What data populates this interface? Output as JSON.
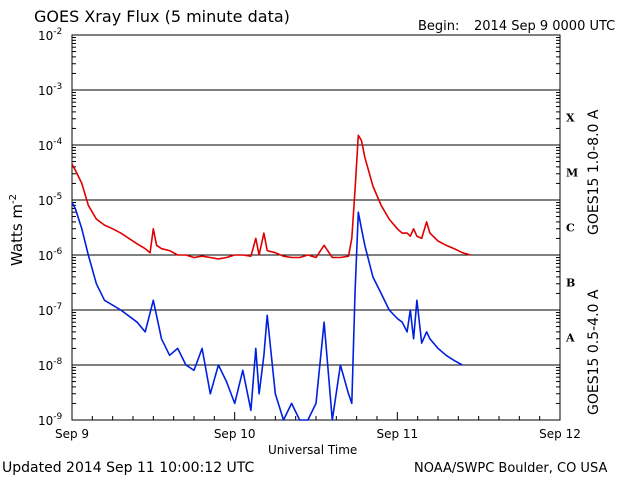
{
  "title": "GOES Xray Flux (5 minute data)",
  "begin_label": "Begin:",
  "begin_value": "2014 Sep 9 0000 UTC",
  "ylabel": "Watts m",
  "ylabel_exp": "-2",
  "xlabel": "Universal Time",
  "footer_left": "Updated 2014 Sep 11 10:00:12 UTC",
  "footer_right": "NOAA/SWPC Boulder, CO USA",
  "colors": {
    "long": "#e00000",
    "short": "#0020e0",
    "grid": "#000000"
  },
  "chart_data": {
    "type": "line",
    "title": "GOES Xray Flux (5 minute data)",
    "xlabel": "Universal Time",
    "ylabel": "Watts m-2",
    "yscale": "log",
    "ylim": [
      1e-09,
      0.01
    ],
    "xlim": [
      0,
      3
    ],
    "x_tick_labels": [
      "Sep 9",
      "Sep 10",
      "Sep 11",
      "Sep 12"
    ],
    "y_tick_labels": [
      {
        "mant": "10",
        "exp": "-9"
      },
      {
        "mant": "10",
        "exp": "-8"
      },
      {
        "mant": "10",
        "exp": "-7"
      },
      {
        "mant": "10",
        "exp": "-6"
      },
      {
        "mant": "10",
        "exp": "-5"
      },
      {
        "mant": "10",
        "exp": "-4"
      },
      {
        "mant": "10",
        "exp": "-3"
      },
      {
        "mant": "10",
        "exp": "-2"
      }
    ],
    "flare_classes": [
      {
        "label": "A",
        "level": 1e-08
      },
      {
        "label": "B",
        "level": 1e-07
      },
      {
        "label": "C",
        "level": 1e-06
      },
      {
        "label": "M",
        "level": 1e-05
      },
      {
        "label": "X",
        "level": 0.0001
      }
    ],
    "grid": "horizontal lines at decades 1e-8 to 1e-3",
    "legend": "right side, rotated",
    "series": [
      {
        "name": "GOES15 1.0-8.0 A",
        "color": "#e00000",
        "x": [
          0.0,
          0.02,
          0.06,
          0.1,
          0.15,
          0.2,
          0.25,
          0.3,
          0.35,
          0.4,
          0.45,
          0.48,
          0.5,
          0.52,
          0.55,
          0.6,
          0.65,
          0.7,
          0.75,
          0.8,
          0.85,
          0.9,
          0.95,
          1.0,
          1.05,
          1.1,
          1.13,
          1.15,
          1.18,
          1.2,
          1.25,
          1.3,
          1.35,
          1.4,
          1.45,
          1.5,
          1.55,
          1.6,
          1.65,
          1.7,
          1.72,
          1.74,
          1.76,
          1.78,
          1.8,
          1.85,
          1.9,
          1.95,
          2.0,
          2.03,
          2.06,
          2.08,
          2.1,
          2.12,
          2.15,
          2.18,
          2.2,
          2.25,
          2.3,
          2.35,
          2.4,
          2.45
        ],
        "y": [
          4.5e-05,
          3.5e-05,
          2e-05,
          8e-06,
          4.5e-06,
          3.5e-06,
          3e-06,
          2.5e-06,
          2e-06,
          1.6e-06,
          1.3e-06,
          1.1e-06,
          3e-06,
          1.5e-06,
          1.3e-06,
          1.2e-06,
          1e-06,
          1e-06,
          9e-07,
          9.5e-07,
          9e-07,
          8.5e-07,
          9e-07,
          1e-06,
          1e-06,
          9.5e-07,
          2e-06,
          1e-06,
          2.5e-06,
          1.2e-06,
          1.1e-06,
          9.5e-07,
          9e-07,
          9e-07,
          1e-06,
          9e-07,
          1.5e-06,
          9e-07,
          9e-07,
          9.5e-07,
          2e-06,
          1.5e-05,
          0.00015,
          0.00012,
          6e-05,
          1.8e-05,
          8e-06,
          4.5e-06,
          3e-06,
          2.5e-06,
          2.5e-06,
          2.2e-06,
          3e-06,
          2.2e-06,
          2e-06,
          4e-06,
          2.5e-06,
          1.8e-06,
          1.5e-06,
          1.3e-06,
          1.1e-06,
          1e-06
        ]
      },
      {
        "name": "GOES15 0.5-4.0 A",
        "color": "#0020e0",
        "x": [
          0.0,
          0.02,
          0.06,
          0.1,
          0.15,
          0.2,
          0.3,
          0.4,
          0.45,
          0.5,
          0.55,
          0.6,
          0.65,
          0.7,
          0.75,
          0.8,
          0.85,
          0.9,
          0.95,
          1.0,
          1.05,
          1.1,
          1.13,
          1.15,
          1.18,
          1.2,
          1.25,
          1.3,
          1.35,
          1.4,
          1.45,
          1.5,
          1.55,
          1.6,
          1.65,
          1.7,
          1.72,
          1.74,
          1.76,
          1.78,
          1.8,
          1.85,
          1.9,
          1.95,
          2.0,
          2.03,
          2.06,
          2.08,
          2.1,
          2.12,
          2.15,
          2.18,
          2.2,
          2.25,
          2.3,
          2.35,
          2.4
        ],
        "y": [
          9e-06,
          7e-06,
          3e-06,
          1e-06,
          3e-07,
          1.5e-07,
          1e-07,
          6e-08,
          4e-08,
          1.5e-07,
          3e-08,
          1.5e-08,
          2e-08,
          1e-08,
          8e-09,
          2e-08,
          3e-09,
          1e-08,
          5e-09,
          2e-09,
          8e-09,
          1.5e-09,
          2e-08,
          3e-09,
          1.5e-08,
          8e-08,
          3e-09,
          1e-09,
          2e-09,
          1e-09,
          1e-09,
          2e-09,
          6e-08,
          1e-09,
          1e-08,
          3e-09,
          2e-09,
          2e-07,
          6e-06,
          3e-06,
          1.5e-06,
          4e-07,
          2e-07,
          1e-07,
          7e-08,
          6e-08,
          4e-08,
          1e-07,
          3e-08,
          1.5e-07,
          2.5e-08,
          4e-08,
          3e-08,
          2e-08,
          1.5e-08,
          1.2e-08,
          1e-08
        ]
      }
    ]
  }
}
